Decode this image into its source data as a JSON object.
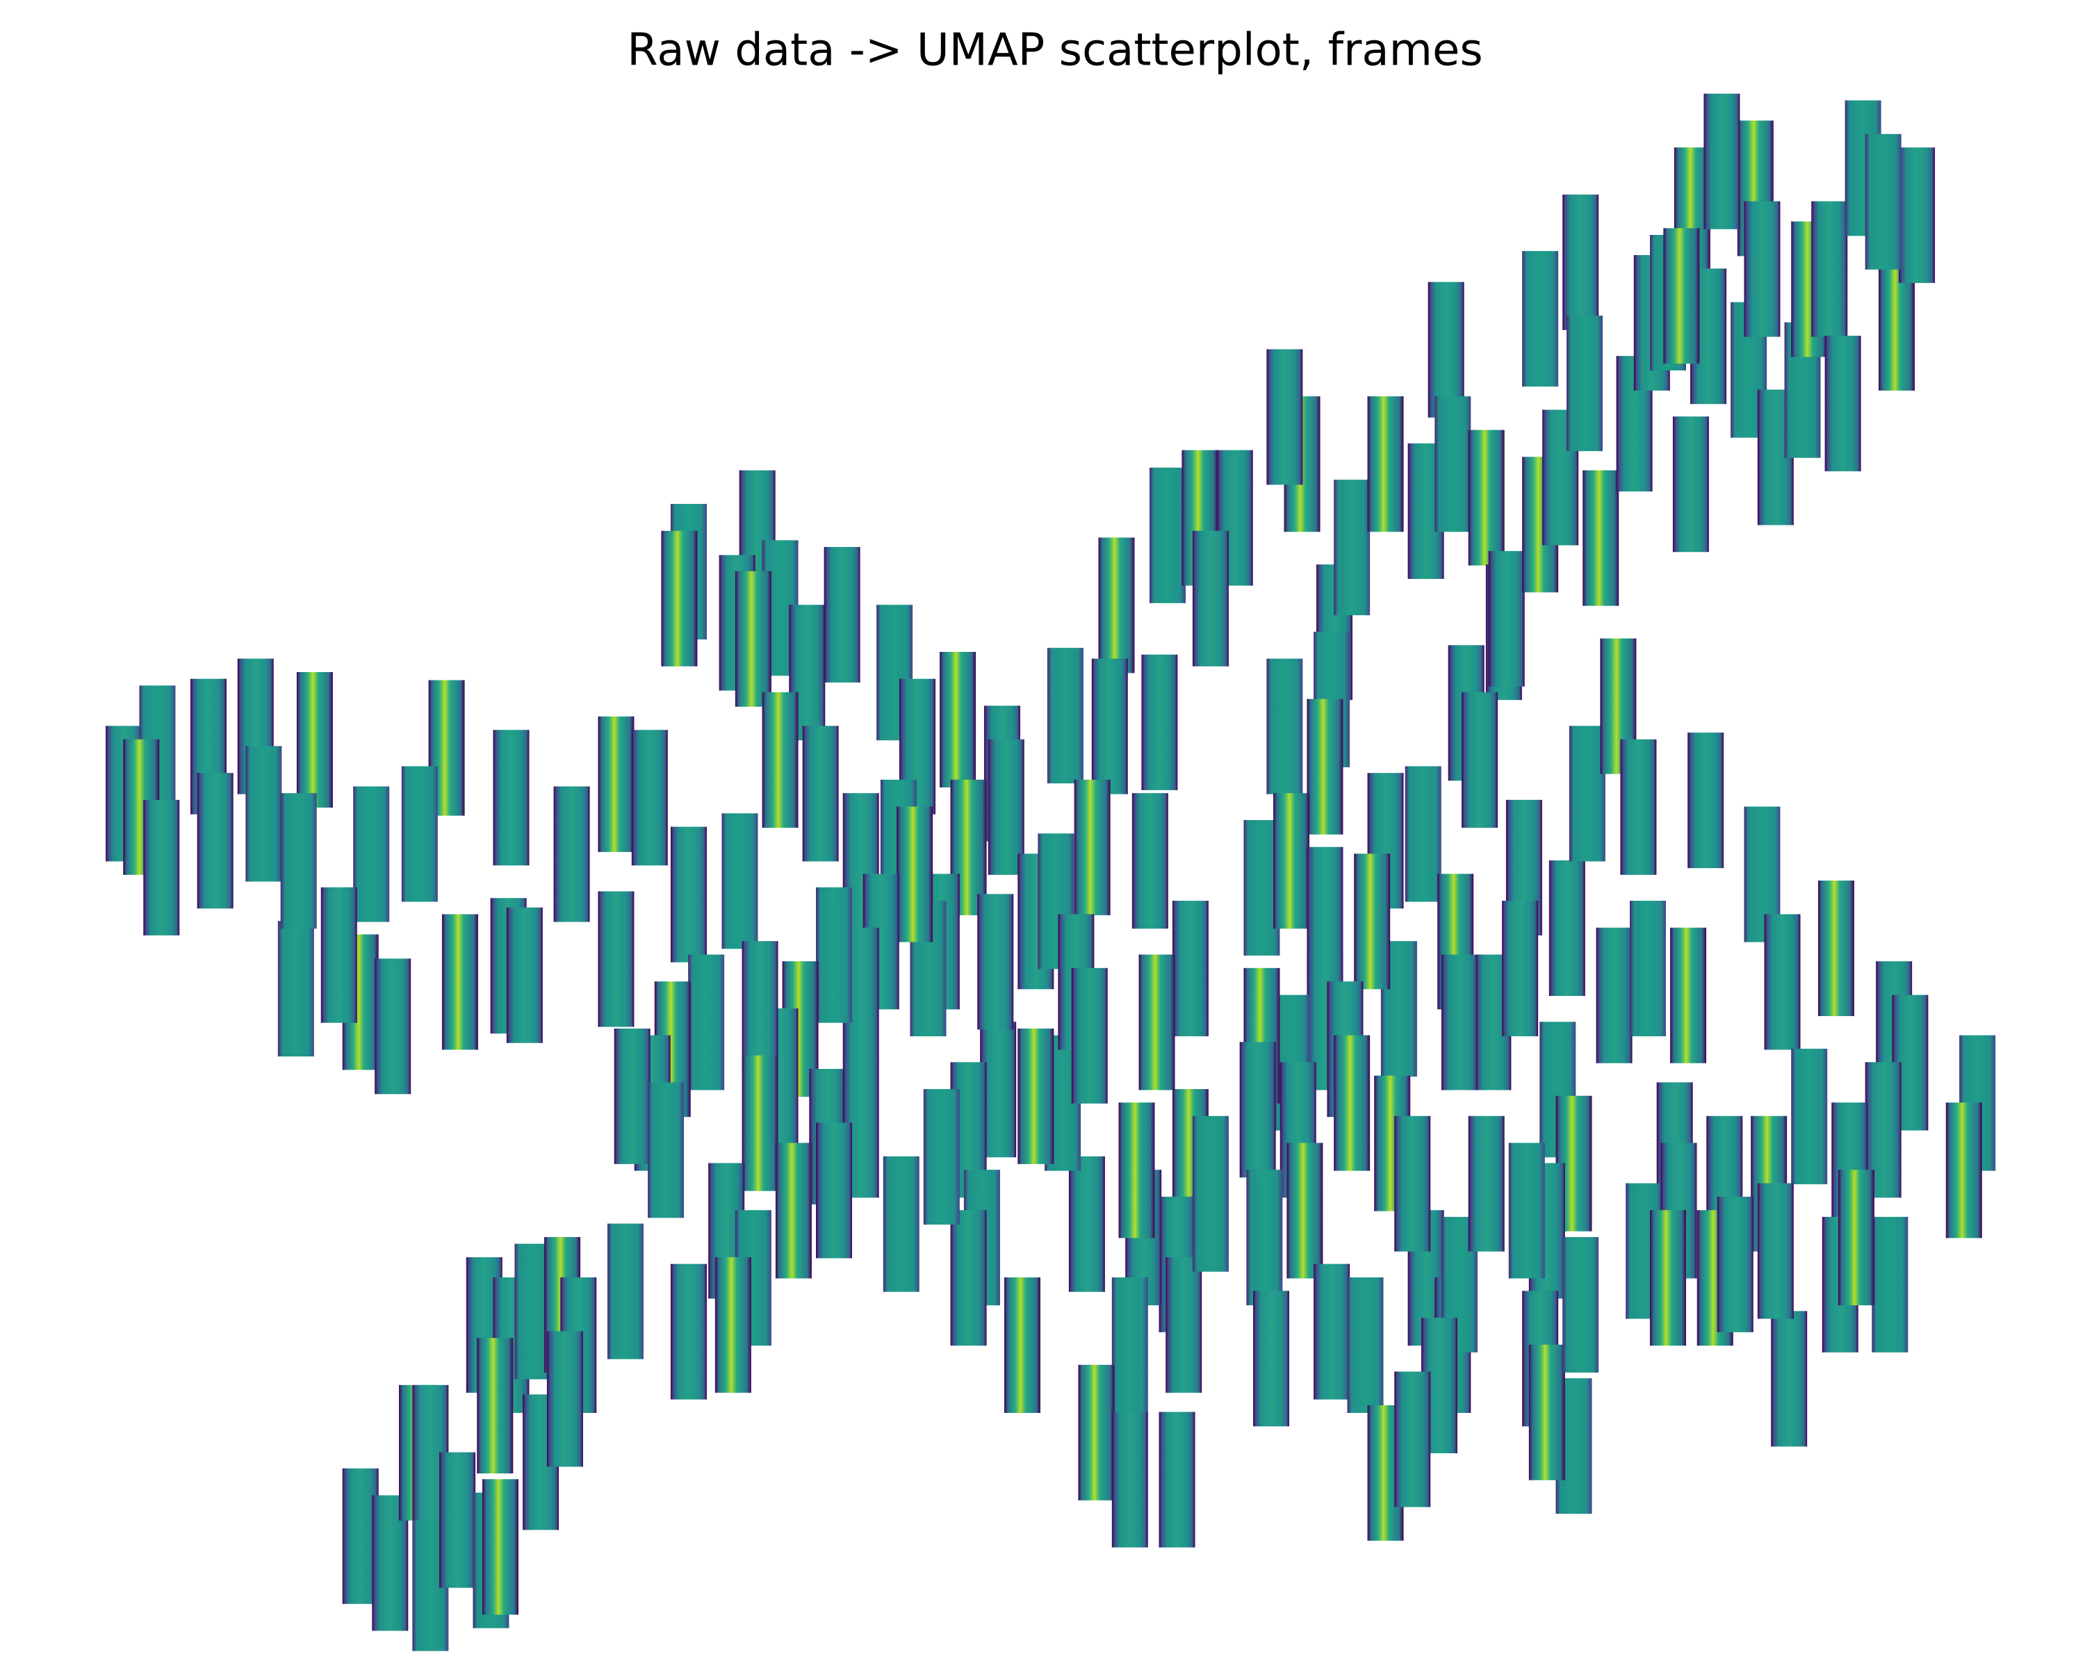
{
  "chart_data": {
    "type": "scatter",
    "title": "Raw data -> UMAP scatterplot, frames",
    "xlim": [
      0,
      155
    ],
    "ylim": [
      0,
      124
    ],
    "x": [
      9.2,
      11.7,
      10.5,
      15.5,
      19,
      19.6,
      23.4,
      16,
      12,
      27.6,
      33.2,
      38,
      42.5,
      31.2,
      34.2,
      37.8,
      39,
      22,
      26.8,
      29.2,
      25.2,
      22.2,
      45.8,
      48.3,
      45.8,
      51.2,
      50.5,
      56.3,
      54.8,
      58,
      56,
      60,
      62.6,
      66.5,
      71.2,
      68.2,
      74.5,
      79.2,
      83,
      82.5,
      86.2,
      86.8,
      89.2,
      91.8,
      90,
      95.5,
      96.8,
      95.5,
      99.2,
      100.5,
      103,
      106,
      107.5,
      108,
      110.5,
      111.8,
      112,
      114.5,
      114.5,
      116,
      117.5,
      117.8,
      119,
      121.5,
      122.8,
      124,
      125.8,
      125.7,
      127,
      130,
      130.5,
      131,
      132,
      134,
      134.5,
      136,
      137,
      138.5,
      141,
      142.5,
      128,
      140,
      125,
      109,
      110,
      99,
      98.5,
      26.8,
      29,
      32,
      31,
      32,
      34,
      36.5,
      37.2,
      36,
      38,
      39.6,
      41.8,
      40.2,
      43,
      46.5,
      36.8,
      42,
      51.2,
      55,
      58,
      61,
      64,
      66.8,
      72,
      74.8,
      77,
      78.5,
      81.2,
      85.5,
      88.5,
      93.8,
      96,
      98.5,
      103,
      105.8,
      108.2,
      113.3,
      116.5,
      118,
      120.3,
      121.8,
      126.8,
      131,
      136.5,
      132.5,
      120,
      122.5,
      125.5,
      140.8,
      142,
      147,
      146,
      140,
      137.5,
      134.5,
      131.5,
      128.2,
      124.5,
      122.2,
      127.5,
      133,
      136.8,
      140.5,
      138,
      132,
      124.8,
      115.8,
      117,
      115,
      114.5,
      117,
      115,
      111,
      108.5,
      104,
      102,
      98.5,
      100,
      96,
      93.8,
      93.5,
      96.5,
      94,
      97,
      94.5,
      99,
      101.5,
      103.5,
      106,
      108,
      108.5,
      103,
      107,
      105,
      117.5,
      88.5,
      87.5,
      85,
      84,
      84.5,
      88,
      87.5,
      90,
      81.5,
      84,
      80.8,
      79,
      77,
      74.2,
      72,
      73,
      76,
      72,
      70,
      69,
      68,
      65.5,
      64,
      62,
      59.5,
      58,
      56.5,
      52.5,
      50,
      48.5,
      47,
      49.5,
      56.5,
      61.5,
      64,
      67,
      59,
      62,
      54,
      56,
      54.5,
      51.2,
      74,
      70,
      86,
      80,
      81,
      90,
      100.5,
      105,
      110.5,
      113.5,
      124,
      129,
      113
    ],
    "y": [
      65,
      68,
      64,
      68.5,
      70,
      63.5,
      69,
      61.5,
      59.5,
      60.5,
      68.4,
      64.7,
      60.5,
      62,
      51,
      52.2,
      51.5,
      50.5,
      49.5,
      47.7,
      53,
      60,
      65.7,
      64.7,
      52.7,
      81.5,
      79.5,
      84,
      77.7,
      78.8,
      76.5,
      74,
      78.3,
      74,
      70.5,
      68.5,
      66.5,
      70.8,
      79,
      70,
      70.3,
      84.2,
      85.5,
      85.5,
      79.5,
      70,
      89.5,
      93,
      77,
      83.3,
      89.5,
      86,
      98,
      89.5,
      87,
      77,
      78,
      100.3,
      85,
      88.5,
      104.5,
      95.5,
      84,
      92.5,
      100,
      101.5,
      108,
      88,
      99,
      96.5,
      110,
      104,
      90,
      95,
      102.5,
      104,
      94,
      111.5,
      100,
      108,
      112,
      109,
      102,
      71,
      67.5,
      72,
      67,
      9.8,
      7.8,
      6.3,
      16,
      16,
      11,
      8,
      9,
      25.5,
      24,
      26.5,
      27,
      15.3,
      24,
      28,
      19.5,
      20,
      57.5,
      58.5,
      67.5,
      65,
      60,
      61,
      61,
      64,
      55.5,
      57,
      61,
      60,
      52,
      58,
      60,
      56,
      61.5,
      62,
      54,
      59.5,
      55,
      65,
      71.5,
      64,
      64.5,
      59,
      53.5,
      51,
      50,
      52,
      50,
      47.5,
      45,
      42,
      37,
      40,
      37,
      41,
      36,
      36,
      38.5,
      31,
      29,
      21.5,
      28.5,
      28.5,
      32,
      31,
      34,
      43,
      37.5,
      32.5,
      23,
      16.5,
      19,
      48,
      48,
      49,
      55.5,
      48,
      46,
      45,
      47,
      41.5,
      40,
      32,
      34,
      23,
      25,
      24,
      39,
      29,
      24,
      28.5,
      14.5,
      21,
      17,
      27,
      38,
      30,
      32,
      24,
      37,
      25.5,
      14,
      34.5,
      17.5,
      14,
      33,
      42,
      42.5,
      43,
      40,
      32,
      24,
      29,
      54,
      52,
      59,
      54,
      50,
      53,
      47.5,
      44,
      49,
      48,
      46,
      42,
      42.5,
      38.5,
      40.5,
      39.5,
      40,
      33,
      34,
      35.5,
      32.5,
      29,
      25.5,
      25,
      52.5,
      38,
      48,
      51,
      47,
      36,
      42,
      36,
      36,
      34,
      29,
      30,
      52
    ]
  }
}
